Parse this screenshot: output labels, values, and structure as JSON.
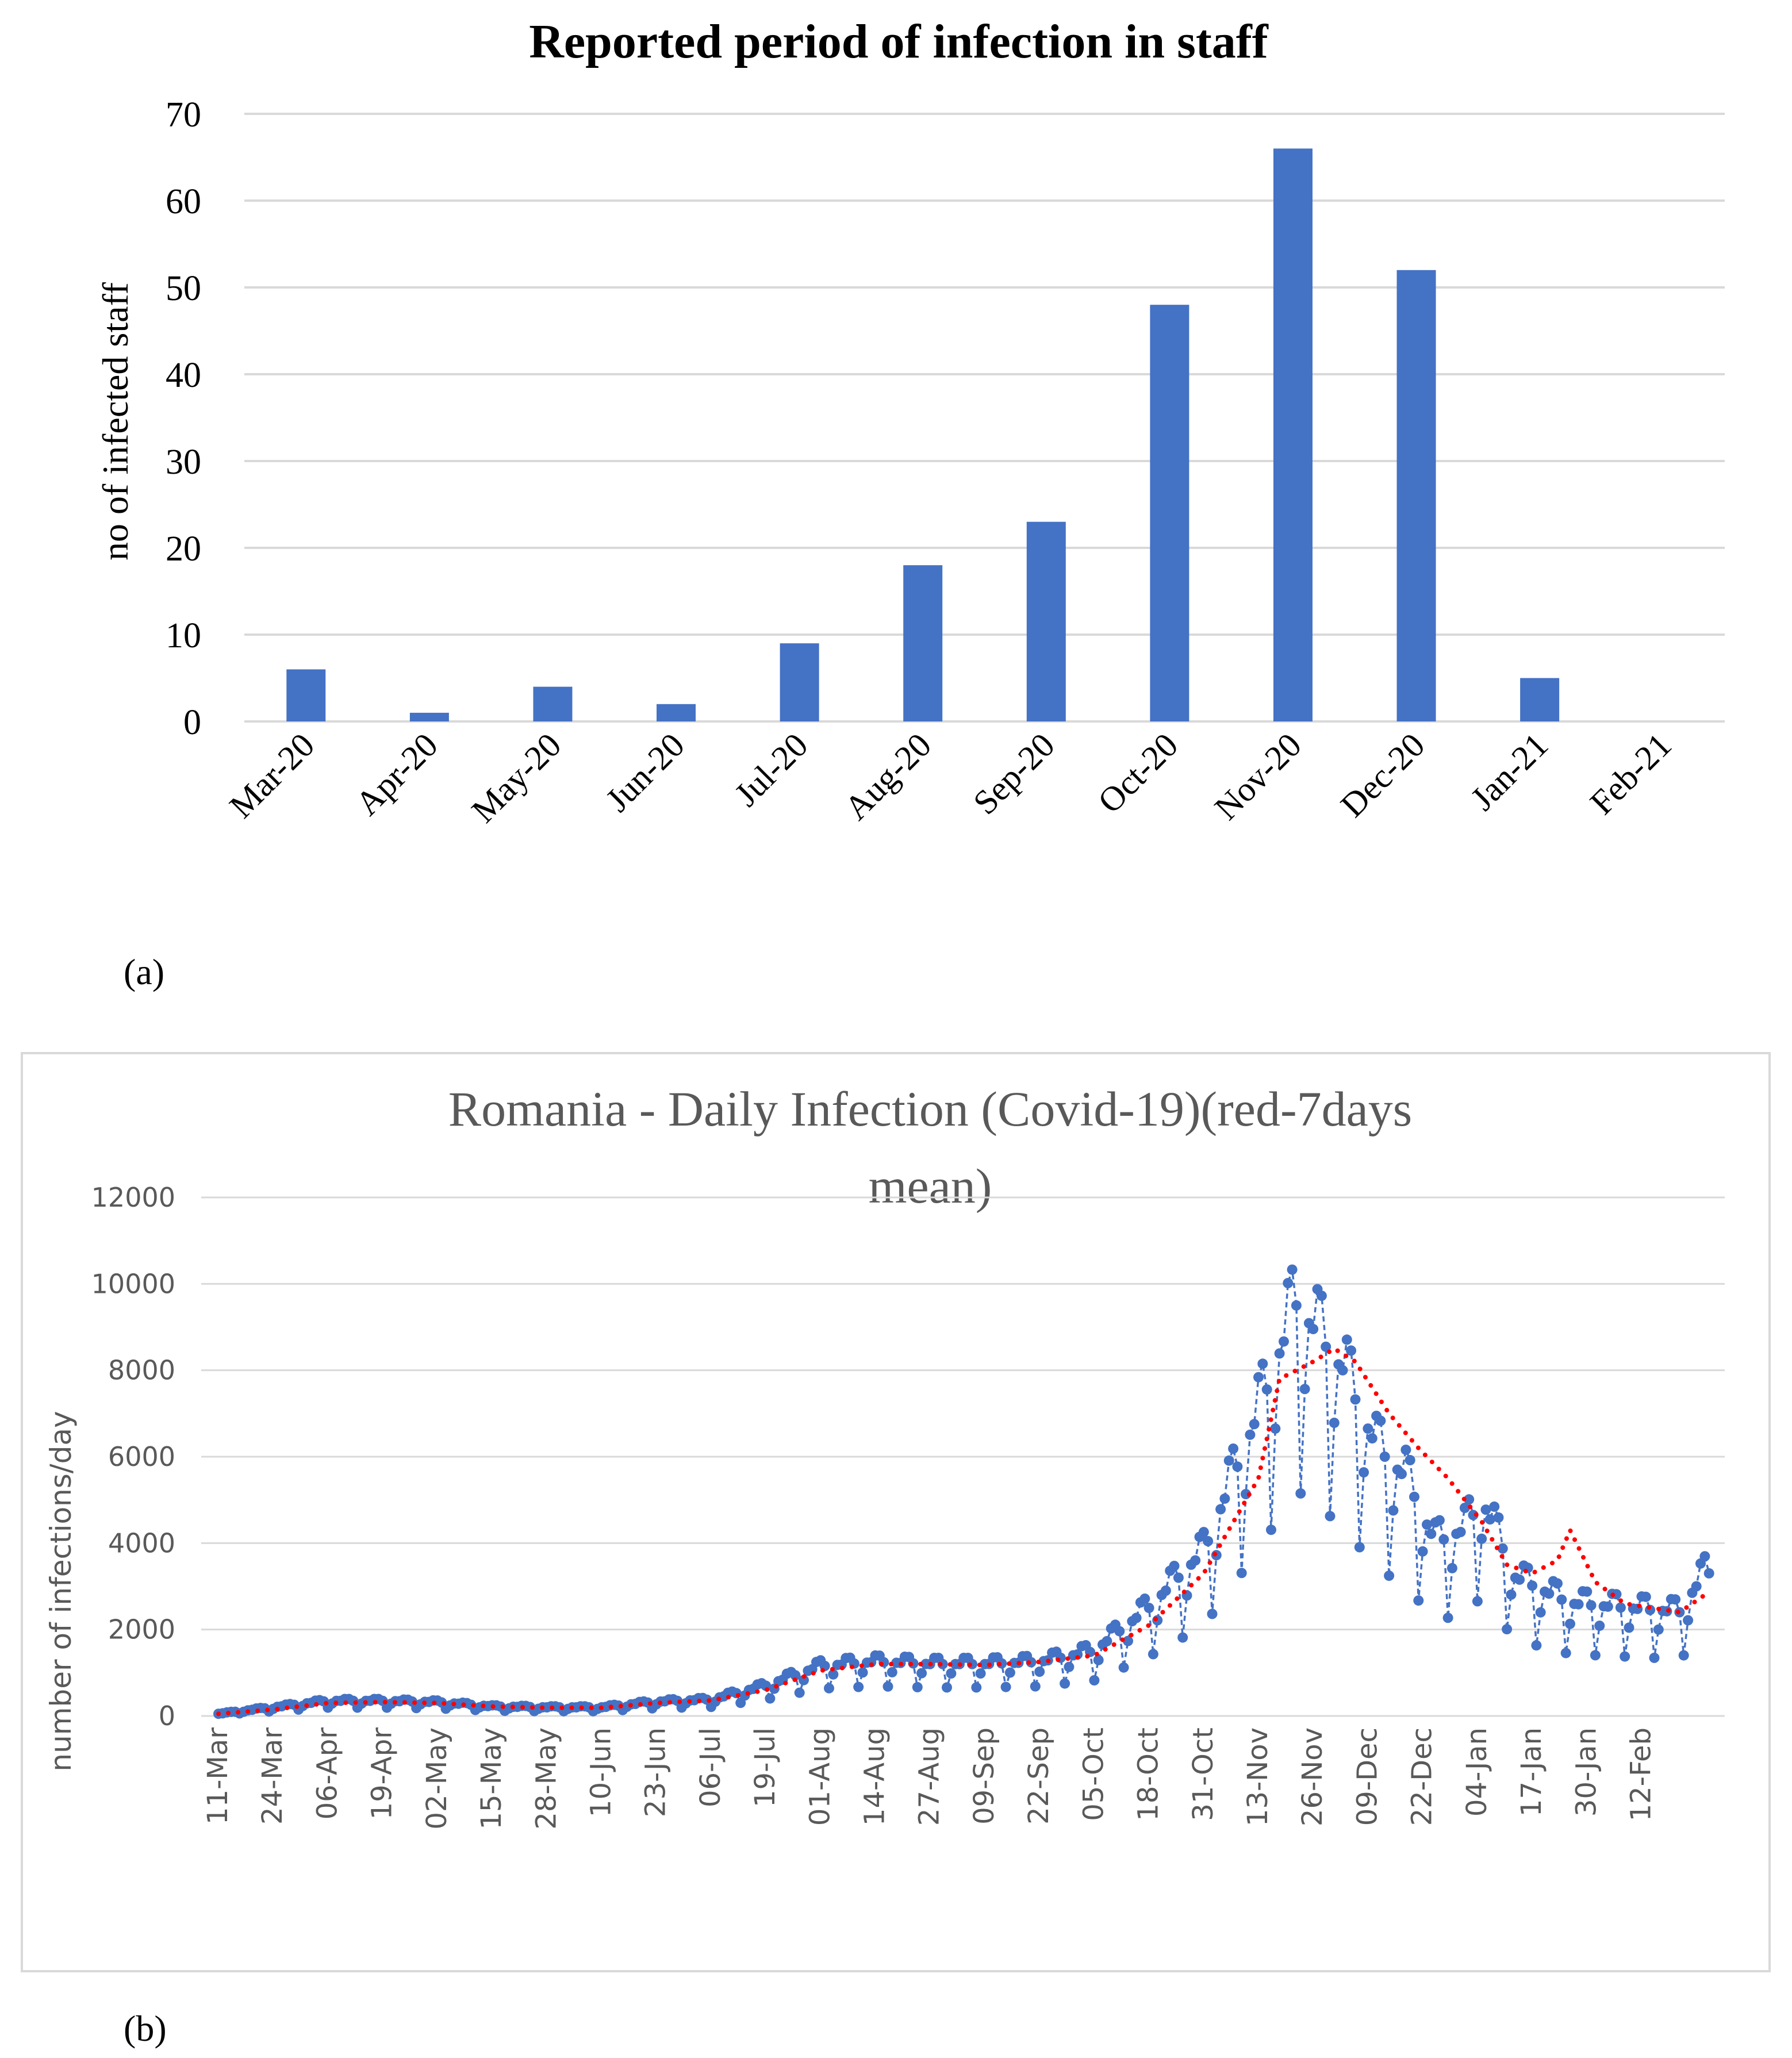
{
  "panel_a_label": "(a)",
  "panel_b_label": "(b)",
  "colors": {
    "bar": "#4472c4",
    "line": "#4472c4",
    "mean": "#ff0000",
    "grid": "#d9d9d9",
    "axis_text": "#595959"
  },
  "chart_data": [
    {
      "type": "bar",
      "title": "Reported period of infection in staff",
      "xlabel": "",
      "ylabel": "no of infected staff",
      "categories": [
        "Mar-20",
        "Apr-20",
        "May-20",
        "Jun-20",
        "Jul-20",
        "Aug-20",
        "Sep-20",
        "Oct-20",
        "Nov-20",
        "Dec-20",
        "Jan-21",
        "Feb-21"
      ],
      "values": [
        6,
        1,
        4,
        2,
        9,
        18,
        23,
        48,
        66,
        52,
        5,
        0
      ],
      "ylim": [
        0,
        70
      ],
      "yticks": [
        0,
        10,
        20,
        30,
        40,
        50,
        60,
        70
      ],
      "grid": true
    },
    {
      "type": "line",
      "title_lines": [
        "Romania - Daily Infection (Covid-19)(red-7days",
        "mean)"
      ],
      "xlabel": "",
      "ylabel": "number of infections/day",
      "x_start": "11-Mar",
      "x_tick_labels": [
        "11-Mar",
        "24-Mar",
        "06-Apr",
        "19-Apr",
        "02-May",
        "15-May",
        "28-May",
        "10-Jun",
        "23-Jun",
        "06-Jul",
        "19-Jul",
        "01-Aug",
        "14-Aug",
        "27-Aug",
        "09-Sep",
        "22-Sep",
        "05-Oct",
        "18-Oct",
        "31-Oct",
        "13-Nov",
        "26-Nov",
        "09-Dec",
        "22-Dec",
        "04-Jan",
        "17-Jan",
        "30-Jan",
        "12-Feb"
      ],
      "x_tick_step_days": 13,
      "ylim": [
        0,
        12000
      ],
      "yticks": [
        0,
        2000,
        4000,
        6000,
        8000,
        10000,
        12000
      ],
      "grid": true,
      "series": [
        {
          "name": "Daily infections",
          "style": "dashed-with-markers",
          "anchors_day_value": [
            [
              0,
              50
            ],
            [
              13,
              200
            ],
            [
              26,
              350
            ],
            [
              39,
              350
            ],
            [
              52,
              320
            ],
            [
              65,
              220
            ],
            [
              78,
              200
            ],
            [
              91,
              200
            ],
            [
              104,
              330
            ],
            [
              117,
              380
            ],
            [
              130,
              700
            ],
            [
              143,
              1150
            ],
            [
              156,
              1250
            ],
            [
              169,
              1200
            ],
            [
              182,
              1200
            ],
            [
              195,
              1250
            ],
            [
              208,
              1500
            ],
            [
              221,
              2500
            ],
            [
              234,
              3800
            ],
            [
              247,
              7000
            ],
            [
              256,
              9500
            ],
            [
              267,
              8000
            ],
            [
              275,
              6200
            ],
            [
              282,
              5500
            ],
            [
              289,
              4000
            ],
            [
              296,
              4300
            ],
            [
              300,
              5000
            ],
            [
              308,
              3200
            ],
            [
              321,
              2600
            ],
            [
              334,
              2500
            ],
            [
              347,
              2400
            ],
            [
              353,
              3300
            ]
          ],
          "weekly_dip_fraction": 0.45
        },
        {
          "name": "7 days mean",
          "style": "dotted",
          "anchors_day_value": [
            [
              0,
              50
            ],
            [
              13,
              150
            ],
            [
              26,
              300
            ],
            [
              39,
              320
            ],
            [
              52,
              300
            ],
            [
              65,
              220
            ],
            [
              78,
              190
            ],
            [
              91,
              190
            ],
            [
              104,
              300
            ],
            [
              117,
              360
            ],
            [
              130,
              600
            ],
            [
              143,
              1050
            ],
            [
              156,
              1200
            ],
            [
              169,
              1200
            ],
            [
              182,
              1180
            ],
            [
              195,
              1250
            ],
            [
              208,
              1400
            ],
            [
              221,
              2100
            ],
            [
              234,
              3300
            ],
            [
              247,
              5500
            ],
            [
              252,
              7800
            ],
            [
              260,
              8200
            ],
            [
              265,
              8500
            ],
            [
              270,
              8200
            ],
            [
              278,
              7000
            ],
            [
              285,
              6200
            ],
            [
              292,
              5500
            ],
            [
              300,
              4500
            ],
            [
              306,
              3500
            ],
            [
              312,
              3300
            ],
            [
              318,
              3600
            ],
            [
              321,
              4300
            ],
            [
              327,
              3100
            ],
            [
              334,
              2600
            ],
            [
              347,
              2400
            ],
            [
              353,
              2800
            ]
          ]
        }
      ]
    }
  ]
}
